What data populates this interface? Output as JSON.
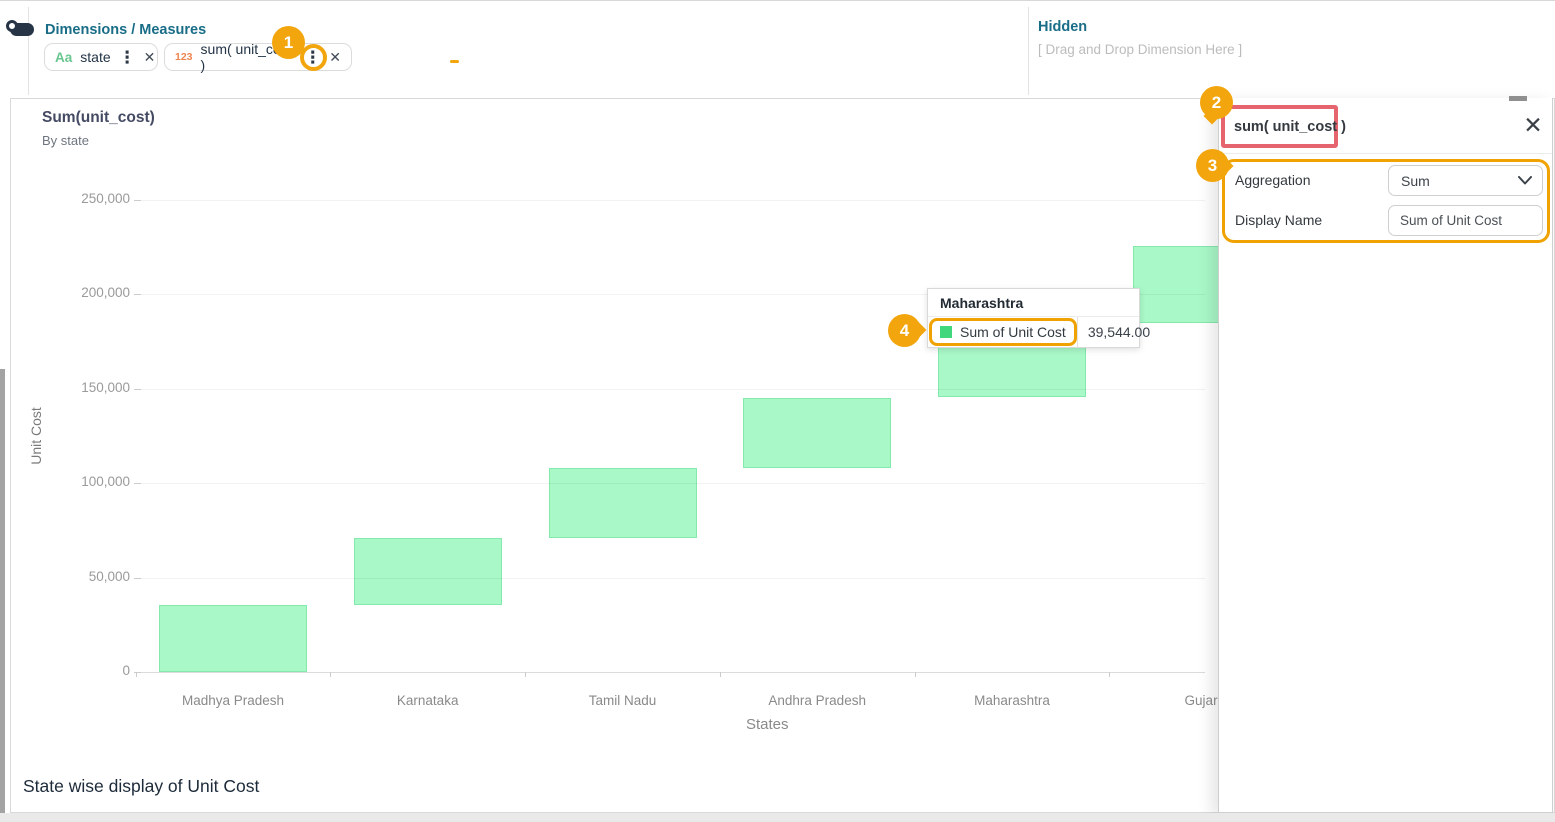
{
  "toolbar": {
    "dimensions_measures_label": "Dimensions / Measures",
    "pills": [
      {
        "type_icon": "Aa",
        "label": "state",
        "menu_icon": "⋮",
        "close_icon": "✕"
      },
      {
        "type_icon": "123",
        "label": "sum( unit_cost )",
        "menu_icon": "⋮",
        "close_icon": "✕"
      }
    ],
    "hidden_label": "Hidden",
    "hidden_placeholder": "[ Drag and Drop Dimension Here ]"
  },
  "chart": {
    "title": "Sum(unit_cost)",
    "subtitle": "By state",
    "footer_title": "State wise display of Unit Cost"
  },
  "chart_data": {
    "type": "bar",
    "subtype": "waterfall",
    "title": "Sum(unit_cost)",
    "subtitle": "By state",
    "xlabel": "States",
    "ylabel": "Unit Cost",
    "categories": [
      "Madhya Pradesh",
      "Karnataka",
      "Tamil Nadu",
      "Andhra Pradesh",
      "Maharashtra",
      "Gujarat"
    ],
    "values": [
      35480,
      35490,
      37080,
      37340,
      39544,
      40700
    ],
    "cumulative_end": [
      35480,
      70970,
      108050,
      145390,
      184934,
      225634
    ],
    "ylim": [
      0,
      250000
    ],
    "y_ticks": [
      {
        "value": 0,
        "label": "0"
      },
      {
        "value": 50000,
        "label": "50,000"
      },
      {
        "value": 100000,
        "label": "100,000"
      },
      {
        "value": 150000,
        "label": "150,000"
      },
      {
        "value": 200000,
        "label": "200,000"
      },
      {
        "value": 250000,
        "label": "250,000"
      }
    ],
    "grid": true,
    "legend": false,
    "bar_fill": "#a9f8c8",
    "bar_border": "#85e8ad"
  },
  "tooltip": {
    "title": "Maharashtra",
    "series_label": "Sum of Unit Cost",
    "value": "39,544.00",
    "swatch_color": "#41d87d"
  },
  "panel": {
    "title": "sum( unit_cost )",
    "close_icon": "✕",
    "aggregation_label": "Aggregation",
    "aggregation_value": "Sum",
    "display_name_label": "Display Name",
    "display_name_value": "Sum of Unit Cost"
  },
  "annotations": {
    "badge_1": "1",
    "badge_2": "2",
    "badge_3": "3",
    "badge_4": "4",
    "accent_color": "#f2a50c",
    "highlight_red": "#e5646e"
  }
}
